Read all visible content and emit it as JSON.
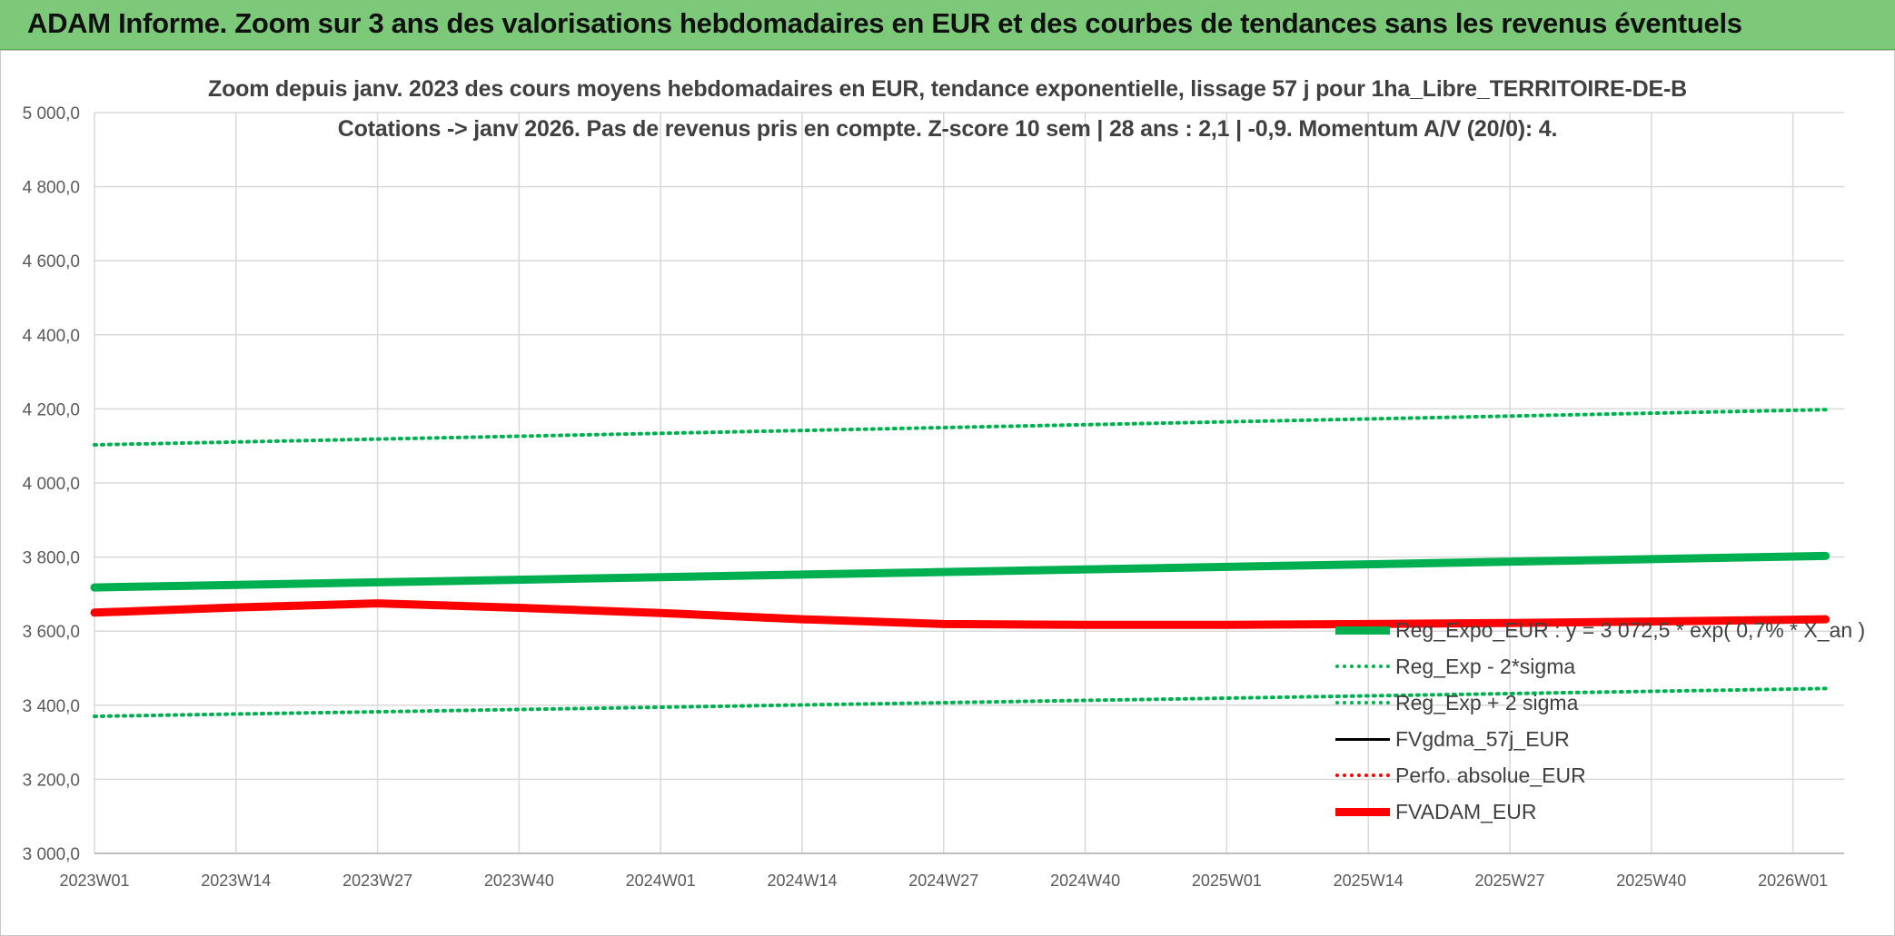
{
  "banner": {
    "title": "ADAM Informe. Zoom sur 3 ans des valorisations hebdomadaires en EUR et des courbes de tendances sans les revenus éventuels"
  },
  "chart_data": {
    "type": "line",
    "title": "Zoom depuis janv. 2023 des cours moyens hebdomadaires en EUR, tendance exponentielle, lissage 57 j pour 1ha_Libre_TERRITOIRE-DE-B",
    "subtitle": "Cotations -> janv 2026. Pas de revenus pris en compte. Z-score 10 sem | 28 ans : 2,1 | -0,9. Momentum A/V (20/0): 4.",
    "xlabel": "",
    "ylabel": "",
    "ylim": [
      3000,
      5000
    ],
    "y_ticks": [
      "3 000,0",
      "3 200,0",
      "3 400,0",
      "3 600,0",
      "3 800,0",
      "4 000,0",
      "4 200,0",
      "4 400,0",
      "4 600,0",
      "4 800,0",
      "5 000,0"
    ],
    "x_ticks": [
      "2023W01",
      "2023W14",
      "2023W27",
      "2023W40",
      "2024W01",
      "2024W14",
      "2024W27",
      "2024W40",
      "2025W01",
      "2025W14",
      "2025W27",
      "2025W40",
      "2026W01"
    ],
    "x_last": "2026W04",
    "grid": "on",
    "legend_position": "bottom-right",
    "series": [
      {
        "name": "Reg_Expo_EUR : y = 3 072,5 * exp( 0,7% *  X_an )",
        "color": "#00b050",
        "style": "solid-thick",
        "points": [
          [
            "2023W01",
            3718
          ],
          [
            "2026W04",
            3803
          ]
        ]
      },
      {
        "name": "Reg_Exp - 2*sigma",
        "color": "#00b050",
        "style": "dotted",
        "points": [
          [
            "2023W01",
            3370
          ],
          [
            "2026W04",
            3445
          ]
        ]
      },
      {
        "name": "Reg_Exp + 2 sigma",
        "color": "#00b050",
        "style": "dotted",
        "points": [
          [
            "2023W01",
            4103
          ],
          [
            "2026W04",
            4198
          ]
        ]
      },
      {
        "name": "FVgdma_57j_EUR",
        "color": "#000000",
        "style": "solid",
        "points": [
          [
            "2023W01",
            3650
          ],
          [
            "2023W14",
            3664
          ],
          [
            "2023W27",
            3676
          ],
          [
            "2023W40",
            3664
          ],
          [
            "2024W01",
            3650
          ],
          [
            "2024W14",
            3632
          ],
          [
            "2024W27",
            3620
          ],
          [
            "2024W34",
            3619
          ],
          [
            "2024W40",
            3618
          ],
          [
            "2025W01",
            3618
          ],
          [
            "2025W14",
            3619
          ],
          [
            "2025W27",
            3622
          ],
          [
            "2025W40",
            3626
          ],
          [
            "2026W04",
            3632
          ]
        ]
      },
      {
        "name": "Perfo. absolue_EUR",
        "color": "#ff0000",
        "style": "dotted",
        "points": []
      },
      {
        "name": "FVADAM_EUR",
        "color": "#ff0000",
        "style": "solid-thick",
        "points": [
          [
            "2023W01",
            3650
          ],
          [
            "2023W14",
            3664
          ],
          [
            "2023W27",
            3675
          ],
          [
            "2023W40",
            3663
          ],
          [
            "2024W01",
            3649
          ],
          [
            "2024W14",
            3632
          ],
          [
            "2024W27",
            3619
          ],
          [
            "2024W34",
            3618
          ],
          [
            "2024W40",
            3617
          ],
          [
            "2025W01",
            3617
          ],
          [
            "2025W14",
            3619
          ],
          [
            "2025W27",
            3622
          ],
          [
            "2025W40",
            3626
          ],
          [
            "2026W04",
            3632
          ]
        ]
      }
    ]
  }
}
